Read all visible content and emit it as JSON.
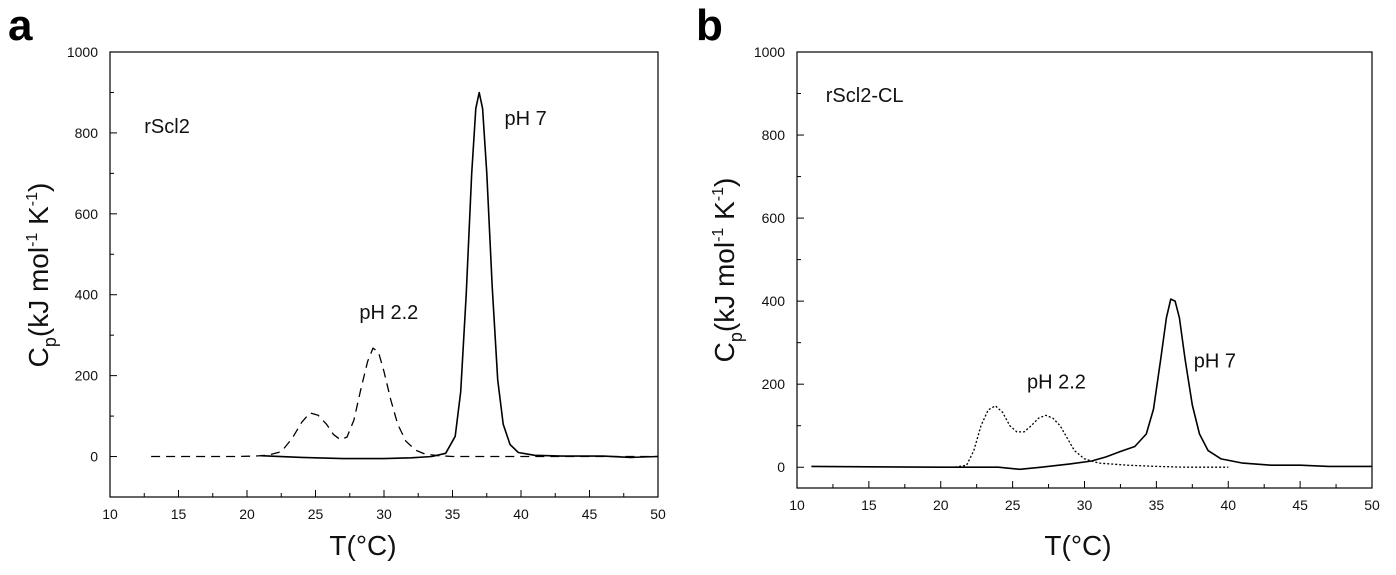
{
  "chart_data": [
    {
      "type": "line",
      "panel_label": "a",
      "xlabel": "T(°C)",
      "ylabel": {
        "main": "C",
        "sub": "p",
        "rest1": "(kJ mol",
        "sup1": "-1",
        "rest2": " K",
        "sup2": "-1",
        "rest3": ")"
      },
      "xlim": [
        10,
        50
      ],
      "ylim": [
        -100,
        1000
      ],
      "xticks": [
        "10",
        "15",
        "20",
        "25",
        "30",
        "35",
        "40",
        "45",
        "50"
      ],
      "yticks": [
        "0",
        "200",
        "400",
        "600",
        "800",
        "1000"
      ],
      "grid": false,
      "annotations": [
        {
          "text": "rScl2",
          "x": 12.5,
          "y": 800
        },
        {
          "text": "pH 7",
          "x": 38.8,
          "y": 820
        },
        {
          "text": "pH 2.2",
          "x": 28.2,
          "y": 340
        }
      ],
      "series": [
        {
          "name": "pH 2.2",
          "style": "dashed",
          "points": [
            [
              13,
              0
            ],
            [
              16,
              0
            ],
            [
              19,
              0
            ],
            [
              20.5,
              1
            ],
            [
              21.5,
              3
            ],
            [
              22.5,
              12
            ],
            [
              23.3,
              45
            ],
            [
              24,
              85
            ],
            [
              24.6,
              108
            ],
            [
              25.2,
              102
            ],
            [
              25.8,
              80
            ],
            [
              26.3,
              55
            ],
            [
              26.8,
              42
            ],
            [
              27.3,
              48
            ],
            [
              27.8,
              90
            ],
            [
              28.3,
              165
            ],
            [
              28.8,
              235
            ],
            [
              29.2,
              268
            ],
            [
              29.6,
              258
            ],
            [
              30,
              210
            ],
            [
              30.5,
              140
            ],
            [
              31,
              80
            ],
            [
              31.6,
              38
            ],
            [
              32.3,
              16
            ],
            [
              33,
              6
            ],
            [
              34,
              2
            ],
            [
              35,
              0
            ],
            [
              50,
              0
            ]
          ]
        },
        {
          "name": "pH 7",
          "style": "solid",
          "points": [
            [
              21,
              2
            ],
            [
              24,
              -2
            ],
            [
              27,
              -5
            ],
            [
              30,
              -5
            ],
            [
              32,
              -3
            ],
            [
              33.5,
              0
            ],
            [
              34.5,
              8
            ],
            [
              35.2,
              50
            ],
            [
              35.6,
              160
            ],
            [
              36,
              400
            ],
            [
              36.4,
              700
            ],
            [
              36.7,
              860
            ],
            [
              36.95,
              900
            ],
            [
              37.2,
              860
            ],
            [
              37.5,
              700
            ],
            [
              37.9,
              420
            ],
            [
              38.3,
              190
            ],
            [
              38.7,
              80
            ],
            [
              39.2,
              30
            ],
            [
              39.8,
              10
            ],
            [
              41,
              3
            ],
            [
              43,
              1
            ],
            [
              46,
              1
            ],
            [
              48,
              -2
            ],
            [
              50,
              0
            ]
          ]
        }
      ]
    },
    {
      "type": "line",
      "panel_label": "b",
      "xlabel": "T(°C)",
      "ylabel": {
        "main": "C",
        "sub": "p",
        "rest1": "(kJ mol",
        "sup1": "-1",
        "rest2": " K",
        "sup2": "-1",
        "rest3": ")"
      },
      "xlim": [
        10,
        50
      ],
      "ylim": [
        -50,
        1000
      ],
      "xticks": [
        "10",
        "15",
        "20",
        "25",
        "30",
        "35",
        "40",
        "45",
        "50"
      ],
      "yticks": [
        "0",
        "200",
        "400",
        "600",
        "800",
        "1000"
      ],
      "grid": false,
      "annotations": [
        {
          "text": "rScl2-CL",
          "x": 12,
          "y": 880
        },
        {
          "text": "pH 7",
          "x": 37.6,
          "y": 240
        },
        {
          "text": "pH 2.2",
          "x": 26,
          "y": 190
        }
      ],
      "series": [
        {
          "name": "pH 2.2",
          "style": "dotted",
          "points": [
            [
              21,
              0
            ],
            [
              21.8,
              5
            ],
            [
              22.3,
              40
            ],
            [
              22.8,
              100
            ],
            [
              23.3,
              138
            ],
            [
              23.8,
              148
            ],
            [
              24.3,
              132
            ],
            [
              24.8,
              100
            ],
            [
              25.3,
              85
            ],
            [
              25.8,
              85
            ],
            [
              26.3,
              100
            ],
            [
              26.8,
              118
            ],
            [
              27.3,
              125
            ],
            [
              27.8,
              118
            ],
            [
              28.3,
              100
            ],
            [
              28.8,
              70
            ],
            [
              29.3,
              40
            ],
            [
              30,
              20
            ],
            [
              31,
              10
            ],
            [
              33,
              5
            ],
            [
              35,
              2
            ],
            [
              37,
              0
            ],
            [
              40,
              0
            ]
          ]
        },
        {
          "name": "pH 7",
          "style": "solid",
          "points": [
            [
              11,
              2
            ],
            [
              15,
              1
            ],
            [
              20,
              0
            ],
            [
              24,
              0
            ],
            [
              25.5,
              -5
            ],
            [
              27,
              0
            ],
            [
              29,
              8
            ],
            [
              30.5,
              15
            ],
            [
              31.5,
              25
            ],
            [
              32.5,
              38
            ],
            [
              33.5,
              50
            ],
            [
              34.3,
              80
            ],
            [
              34.8,
              140
            ],
            [
              35.3,
              260
            ],
            [
              35.7,
              360
            ],
            [
              36,
              405
            ],
            [
              36.3,
              400
            ],
            [
              36.6,
              360
            ],
            [
              37,
              260
            ],
            [
              37.5,
              150
            ],
            [
              38,
              80
            ],
            [
              38.6,
              40
            ],
            [
              39.5,
              20
            ],
            [
              41,
              10
            ],
            [
              43,
              5
            ],
            [
              45,
              5
            ],
            [
              47,
              2
            ],
            [
              50,
              2
            ]
          ]
        }
      ]
    }
  ]
}
